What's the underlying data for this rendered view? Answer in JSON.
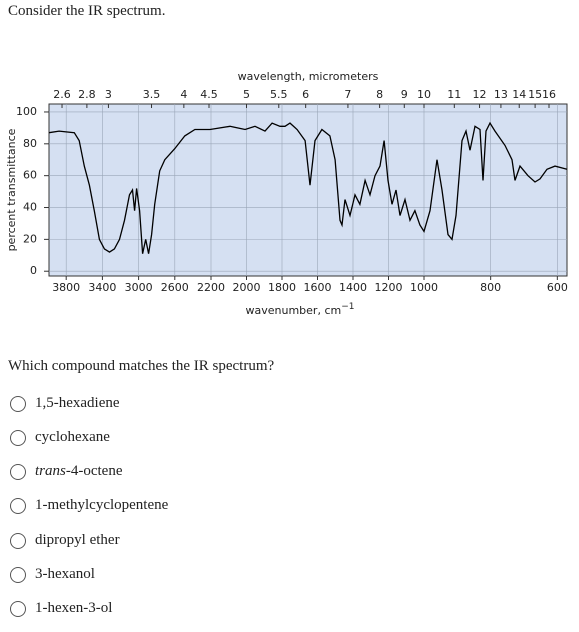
{
  "prompt": "Consider the IR spectrum.",
  "chart_data": {
    "type": "line",
    "x2label": "wavelength, micrometers",
    "xlabel": "wavenumber, cm",
    "xlabel_sup": "−1",
    "ylabel": "percent transmittance",
    "color": "#000000",
    "background": "#d5e0f2",
    "grid": true,
    "xlim": [
      3990,
      571
    ],
    "xbreaks": [
      2200,
      1000
    ],
    "xticks": [
      3800,
      3400,
      3000,
      2600,
      2200,
      2000,
      1800,
      1600,
      1400,
      1200,
      1000,
      800,
      600
    ],
    "x2ticks": [
      2.6,
      2.8,
      3,
      3.5,
      4,
      4.5,
      5,
      5.5,
      6,
      7,
      8,
      9,
      10,
      11,
      12,
      13,
      14,
      15,
      16
    ],
    "ylim": [
      -3,
      105
    ],
    "yticks": [
      0,
      20,
      40,
      60,
      80,
      100
    ],
    "x": [
      3990,
      3878,
      3711,
      3656,
      3600,
      3544,
      3489,
      3433,
      3378,
      3322,
      3267,
      3211,
      3156,
      3100,
      3067,
      3044,
      3022,
      2989,
      2956,
      2922,
      2889,
      2856,
      2822,
      2767,
      2711,
      2600,
      2489,
      2378,
      2211,
      2093,
      2008,
      1952,
      1896,
      1856,
      1811,
      1783,
      1755,
      1715,
      1670,
      1642,
      1614,
      1575,
      1530,
      1501,
      1473,
      1462,
      1445,
      1417,
      1389,
      1361,
      1332,
      1304,
      1276,
      1248,
      1225,
      1203,
      1180,
      1158,
      1135,
      1107,
      1079,
      1051,
      1023,
      1000,
      982,
      961,
      946,
      928,
      916,
      904,
      886,
      874,
      862,
      847,
      832,
      823,
      814,
      802,
      787,
      757,
      736,
      727,
      712,
      688,
      667,
      652,
      631,
      607,
      571
    ],
    "values": [
      87,
      88,
      87,
      82,
      66,
      54,
      38,
      20,
      14,
      12,
      14,
      20,
      32,
      48,
      51,
      38,
      52,
      38,
      11,
      20,
      11,
      23,
      42,
      63,
      70,
      77,
      85,
      89,
      89,
      91,
      89,
      91,
      88,
      93,
      91,
      91,
      93,
      89,
      82,
      54,
      82,
      89,
      85,
      70,
      32,
      29,
      45,
      35,
      48,
      42,
      57,
      48,
      60,
      66,
      82,
      57,
      42,
      51,
      35,
      45,
      32,
      38,
      29,
      25,
      38,
      70,
      51,
      23,
      20,
      35,
      82,
      88,
      76,
      91,
      89,
      57,
      88,
      93,
      88,
      79,
      70,
      57,
      66,
      60,
      56,
      58,
      64,
      66,
      64
    ]
  },
  "question": "Which compound matches the IR spectrum?",
  "options": [
    "1,5-hexadiene",
    "cyclohexane",
    {
      "italic": "trans",
      "rest": "-4-octene"
    },
    "1-methylcyclopentene",
    "dipropyl ether",
    "3-hexanol",
    "1-hexen-3-ol"
  ]
}
